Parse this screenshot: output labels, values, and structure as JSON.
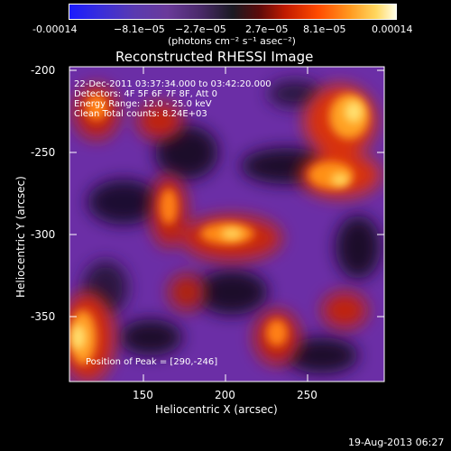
{
  "colorbar": {
    "ticks": [
      "-0.00014",
      "−8.1e−05",
      "−2.7e−05",
      "2.7e−05",
      "8.1e−05",
      "0.00014"
    ],
    "unit_label": "(photons cm⁻² s⁻¹ asec⁻²)"
  },
  "title": "Reconstructed RHESSI Image",
  "info": {
    "line1": "22-Dec-2011 03:37:34.000 to 03:42:20.000",
    "line2": "Detectors: 4F 5F 6F 7F 8F, Att 0",
    "line3": "Energy Range: 12.0 - 25.0 keV",
    "line4": "Clean     Total counts: 8.24E+03",
    "peak": "Position of Peak = [290,-246]"
  },
  "axes": {
    "xlabel": "Heliocentric X (arcsec)",
    "ylabel": "Heliocentric Y (arcsec)",
    "xticks": [
      "150",
      "200",
      "250"
    ],
    "yticks": [
      "-200",
      "-250",
      "-300",
      "-350"
    ]
  },
  "footer": {
    "timestamp": "19-Aug-2013 06:27"
  },
  "colors": {
    "background": "#000000",
    "axis": "#ffffff"
  }
}
